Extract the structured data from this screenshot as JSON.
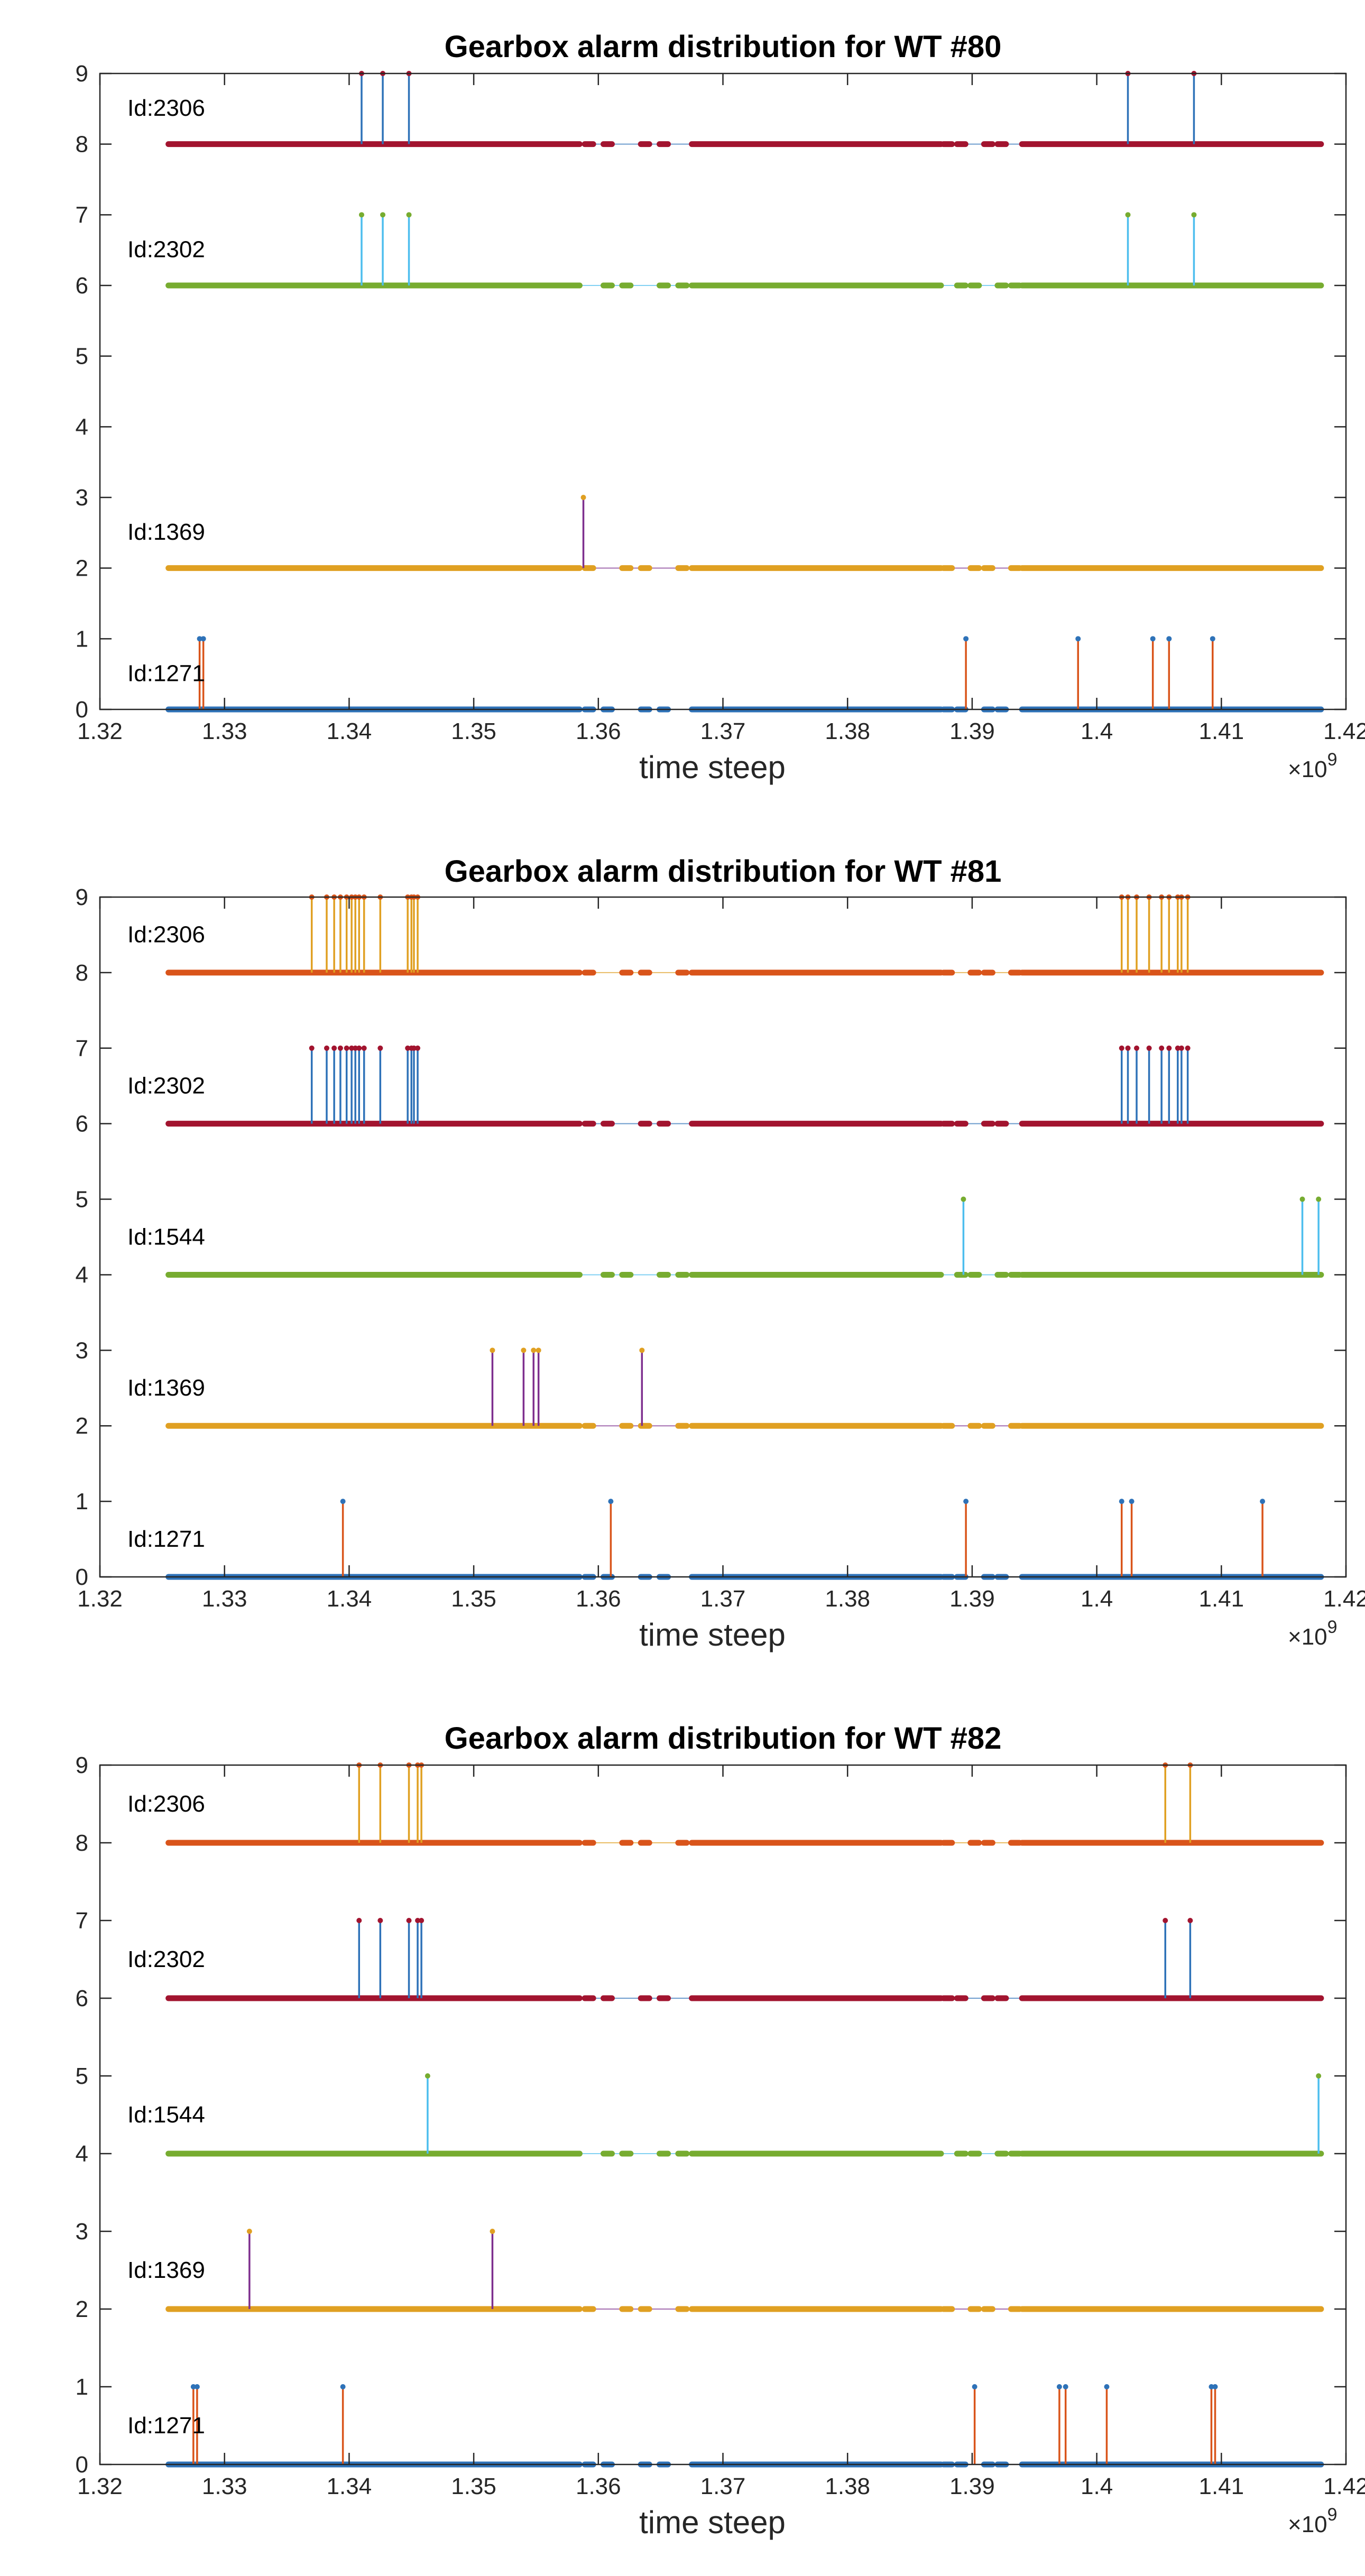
{
  "chart_data": [
    {
      "type": "line",
      "title": "Gearbox alarm distribution for WT #80",
      "xlabel": "time steep",
      "x_exponent_label": "×10",
      "x_exponent": "9",
      "xlim": [
        1.32,
        1.42
      ],
      "ylim": [
        0,
        9
      ],
      "xticks": [
        "1.32",
        "1.33",
        "1.34",
        "1.35",
        "1.36",
        "1.37",
        "1.38",
        "1.39",
        "1.4",
        "1.41",
        "1.42"
      ],
      "yticks": [
        "0",
        "1",
        "2",
        "3",
        "4",
        "5",
        "6",
        "7",
        "8",
        "9"
      ],
      "grid": false,
      "data_gaps": [
        [
          1.3585,
          1.3675
        ],
        [
          1.3875,
          1.394
        ]
      ],
      "series": [
        {
          "label": "Id:1271",
          "baseline": 0,
          "alarm_value": 1,
          "x_range": [
            1.3255,
            1.418
          ],
          "alarms": [
            1.328,
            1.3283,
            1.3895,
            1.3985,
            1.4045,
            1.4058,
            1.4093
          ],
          "line_color": "#2e72b8",
          "stem_color": "#d9541a"
        },
        {
          "label": "Id:1369",
          "baseline": 2,
          "alarm_value": 3,
          "x_range": [
            1.3255,
            1.418
          ],
          "alarms": [
            1.3588
          ],
          "line_color": "#e0a022",
          "stem_color": "#7e2f8e"
        },
        {
          "label": "Id:2302",
          "baseline": 6,
          "alarm_value": 7,
          "x_range": [
            1.3255,
            1.418
          ],
          "alarms": [
            1.341,
            1.3427,
            1.3448,
            1.4025,
            1.4078
          ],
          "line_color": "#77ac30",
          "stem_color": "#4dbeee"
        },
        {
          "label": "Id:2306",
          "baseline": 8,
          "alarm_value": 9,
          "x_range": [
            1.3255,
            1.418
          ],
          "alarms": [
            1.341,
            1.3427,
            1.3448,
            1.4025,
            1.4078
          ],
          "line_color": "#a2142f",
          "stem_color": "#2e72b8"
        }
      ]
    },
    {
      "type": "line",
      "title": "Gearbox alarm distribution for WT #81",
      "xlabel": "time steep",
      "x_exponent_label": "×10",
      "x_exponent": "9",
      "xlim": [
        1.32,
        1.42
      ],
      "ylim": [
        0,
        9
      ],
      "xticks": [
        "1.32",
        "1.33",
        "1.34",
        "1.35",
        "1.36",
        "1.37",
        "1.38",
        "1.39",
        "1.4",
        "1.41",
        "1.42"
      ],
      "yticks": [
        "0",
        "1",
        "2",
        "3",
        "4",
        "5",
        "6",
        "7",
        "8",
        "9"
      ],
      "grid": false,
      "data_gaps": [
        [
          1.3585,
          1.3675
        ],
        [
          1.3875,
          1.394
        ]
      ],
      "series": [
        {
          "label": "Id:1271",
          "baseline": 0,
          "alarm_value": 1,
          "x_range": [
            1.3255,
            1.418
          ],
          "alarms": [
            1.3395,
            1.361,
            1.3895,
            1.402,
            1.4028,
            1.4133
          ],
          "line_color": "#2e72b8",
          "stem_color": "#d9541a"
        },
        {
          "label": "Id:1369",
          "baseline": 2,
          "alarm_value": 3,
          "x_range": [
            1.3255,
            1.418
          ],
          "alarms": [
            1.3515,
            1.354,
            1.3548,
            1.3552,
            1.3635
          ],
          "line_color": "#e0a022",
          "stem_color": "#7e2f8e"
        },
        {
          "label": "Id:1544",
          "baseline": 4,
          "alarm_value": 5,
          "x_range": [
            1.3255,
            1.418
          ],
          "alarms": [
            1.3893,
            1.4165,
            1.4178
          ],
          "line_color": "#77ac30",
          "stem_color": "#4dbeee"
        },
        {
          "label": "Id:2302",
          "baseline": 6,
          "alarm_value": 7,
          "x_range": [
            1.3255,
            1.418
          ],
          "alarms": [
            1.337,
            1.3382,
            1.3388,
            1.3393,
            1.3398,
            1.3402,
            1.3405,
            1.3408,
            1.3412,
            1.3425,
            1.3447,
            1.345,
            1.3452,
            1.3455,
            1.402,
            1.4025,
            1.4032,
            1.4042,
            1.4052,
            1.4058,
            1.4065,
            1.4068,
            1.4073
          ],
          "line_color": "#a2142f",
          "stem_color": "#2e72b8"
        },
        {
          "label": "Id:2306",
          "baseline": 8,
          "alarm_value": 9,
          "x_range": [
            1.3255,
            1.418
          ],
          "alarms": [
            1.337,
            1.3382,
            1.3388,
            1.3393,
            1.3398,
            1.3402,
            1.3405,
            1.3408,
            1.3412,
            1.3425,
            1.3447,
            1.345,
            1.3452,
            1.3455,
            1.402,
            1.4025,
            1.4032,
            1.4042,
            1.4052,
            1.4058,
            1.4065,
            1.4068,
            1.4073
          ],
          "line_color": "#d9541a",
          "stem_color": "#e0a022"
        }
      ]
    },
    {
      "type": "line",
      "title": "Gearbox alarm distribution for WT #82",
      "xlabel": "time steep",
      "x_exponent_label": "×10",
      "x_exponent": "9",
      "xlim": [
        1.32,
        1.42
      ],
      "ylim": [
        0,
        9
      ],
      "xticks": [
        "1.32",
        "1.33",
        "1.34",
        "1.35",
        "1.36",
        "1.37",
        "1.38",
        "1.39",
        "1.4",
        "1.41",
        "1.42"
      ],
      "yticks": [
        "0",
        "1",
        "2",
        "3",
        "4",
        "5",
        "6",
        "7",
        "8",
        "9"
      ],
      "grid": false,
      "data_gaps": [
        [
          1.3585,
          1.3675
        ],
        [
          1.3875,
          1.394
        ]
      ],
      "series": [
        {
          "label": "Id:1271",
          "baseline": 0,
          "alarm_value": 1,
          "x_range": [
            1.3255,
            1.418
          ],
          "alarms": [
            1.3275,
            1.3278,
            1.3395,
            1.3902,
            1.397,
            1.3975,
            1.4008,
            1.4092,
            1.4095
          ],
          "line_color": "#2e72b8",
          "stem_color": "#d9541a"
        },
        {
          "label": "Id:1369",
          "baseline": 2,
          "alarm_value": 3,
          "x_range": [
            1.3255,
            1.418
          ],
          "alarms": [
            1.332,
            1.3515
          ],
          "line_color": "#e0a022",
          "stem_color": "#7e2f8e"
        },
        {
          "label": "Id:1544",
          "baseline": 4,
          "alarm_value": 5,
          "x_range": [
            1.3255,
            1.418
          ],
          "alarms": [
            1.3463,
            1.4178
          ],
          "line_color": "#77ac30",
          "stem_color": "#4dbeee"
        },
        {
          "label": "Id:2302",
          "baseline": 6,
          "alarm_value": 7,
          "x_range": [
            1.3255,
            1.418
          ],
          "alarms": [
            1.3408,
            1.3425,
            1.3448,
            1.3455,
            1.3458,
            1.4055,
            1.4075
          ],
          "line_color": "#a2142f",
          "stem_color": "#2e72b8"
        },
        {
          "label": "Id:2306",
          "baseline": 8,
          "alarm_value": 9,
          "x_range": [
            1.3255,
            1.418
          ],
          "alarms": [
            1.3408,
            1.3425,
            1.3448,
            1.3455,
            1.3458,
            1.4055,
            1.4075
          ],
          "line_color": "#d9541a",
          "stem_color": "#e0a022"
        }
      ]
    }
  ]
}
